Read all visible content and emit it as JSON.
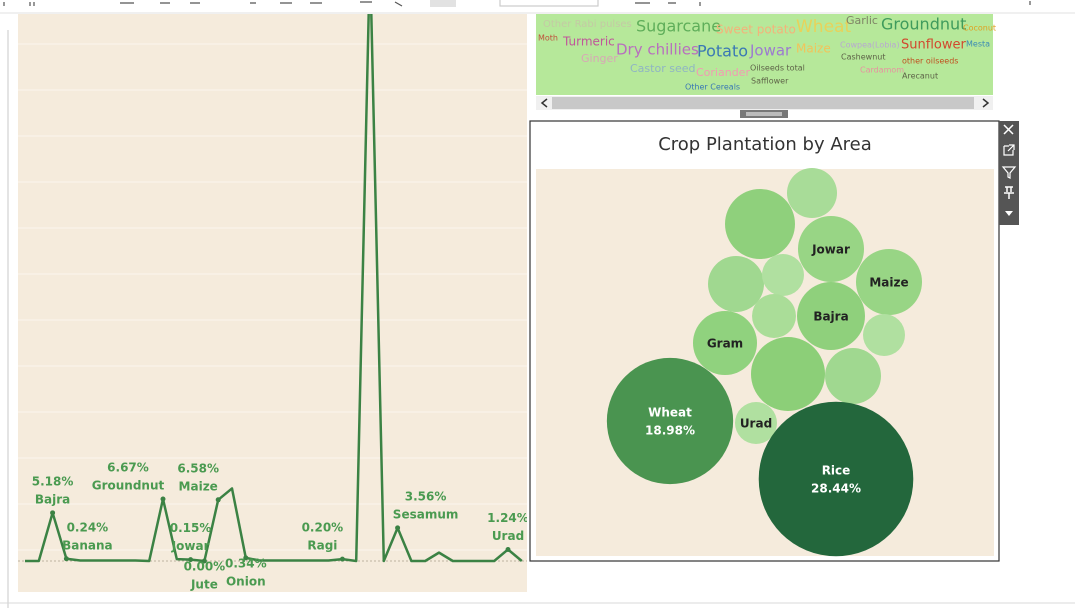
{
  "line_chart": {
    "color": "#3b8244",
    "points": [
      {
        "value": 0
      },
      {
        "value": 0
      },
      {
        "value": 5.18,
        "name": "Bajra",
        "value_label": "5.18%"
      },
      {
        "value": 0.24,
        "name": "Banana",
        "value_label": "0.24%"
      },
      {
        "value": 0.05
      },
      {
        "value": 0.05
      },
      {
        "value": 0.05
      },
      {
        "value": 0.05
      },
      {
        "value": 0.05
      },
      {
        "value": 0
      },
      {
        "value": 6.67,
        "name": "Groundnut",
        "value_label": "6.67%"
      },
      {
        "value": 0.2
      },
      {
        "value": 0.15,
        "name": "Jowar",
        "value_label": "0.15%"
      },
      {
        "value": 0.0,
        "name": "Jute",
        "value_label": "0.00%"
      },
      {
        "value": 6.58,
        "name": "Maize",
        "value_label": "6.58%"
      },
      {
        "value": 7.8
      },
      {
        "value": 0.34,
        "name": "Onion",
        "value_label": "0.34%"
      },
      {
        "value": 0.05
      },
      {
        "value": 0.05
      },
      {
        "value": 0.05
      },
      {
        "value": 0.05
      },
      {
        "value": 0.05
      },
      {
        "value": 0.05
      },
      {
        "value": 0.2,
        "name": "Ragi",
        "value_label": "0.20%"
      },
      {
        "value": 0
      },
      {
        "value": 65
      },
      {
        "value": 0
      },
      {
        "value": 3.56,
        "name": "Sesamum",
        "value_label": "3.56%"
      },
      {
        "value": 0
      },
      {
        "value": 0
      },
      {
        "value": 0.9
      },
      {
        "value": 0
      },
      {
        "value": 0
      },
      {
        "value": 0
      },
      {
        "value": 0
      },
      {
        "value": 1.24,
        "name": "Urad",
        "value_label": "1.24%"
      },
      {
        "value": 0
      }
    ]
  },
  "word_cloud": {
    "words": [
      {
        "text": "Other Rabi pulses",
        "color": "#c4c9a4"
      },
      {
        "text": "Sugarcane",
        "color": "#5fae5a"
      },
      {
        "text": "Sweet potato",
        "color": "#f4b27a"
      },
      {
        "text": "Wheat",
        "color": "#e8d25a"
      },
      {
        "text": "Garlic",
        "color": "#7e8466"
      },
      {
        "text": "Groundnut",
        "color": "#3f9b5c"
      },
      {
        "text": "Coconut",
        "color": "#e0a020"
      },
      {
        "text": "Moth",
        "color": "#c0503a"
      },
      {
        "text": "Turmeric",
        "color": "#c0569a"
      },
      {
        "text": "Ginger",
        "color": "#d8a7b5"
      },
      {
        "text": "Dry chillies",
        "color": "#b86fbe"
      },
      {
        "text": "Castor seed",
        "color": "#8fb4c4"
      },
      {
        "text": "Potato",
        "color": "#3a78b4"
      },
      {
        "text": "Coriander",
        "color": "#f29ab2"
      },
      {
        "text": "Jowar",
        "color": "#9c7ad0"
      },
      {
        "text": "Oilseeds total",
        "color": "#5e6448"
      },
      {
        "text": "Safflower",
        "color": "#5e6448"
      },
      {
        "text": "Other Cereals",
        "color": "#3a78b4"
      },
      {
        "text": "Maize",
        "color": "#f2c35a"
      },
      {
        "text": "Cowpea(Lobia)",
        "color": "#b8a8d0"
      },
      {
        "text": "Cashewnut",
        "color": "#5e6448"
      },
      {
        "text": "Cardamom",
        "color": "#e891a0"
      },
      {
        "text": "Sunflower",
        "color": "#d2482e"
      },
      {
        "text": "other oilseeds",
        "color": "#c05020"
      },
      {
        "text": "Arecanut",
        "color": "#5e6448"
      },
      {
        "text": "Mesta",
        "color": "#3a8ab4"
      }
    ]
  },
  "bubble_chart": {
    "title": "Crop Plantation by Area",
    "bubbles": [
      {
        "value": 2.98,
        "color": "#a8dc98"
      },
      {
        "value": 5.83,
        "color": "#8fd07c"
      },
      {
        "value": 5.19,
        "color": "#98d585",
        "name": "Jowar"
      },
      {
        "value": 5.19,
        "color": "#98d585",
        "name": "Maize"
      },
      {
        "value": 3.73,
        "color": "#a0d890"
      },
      {
        "value": 2.1,
        "color": "#b0e0a0"
      },
      {
        "value": 2.3,
        "color": "#aadd98"
      },
      {
        "value": 5.5,
        "color": "#8fd07c",
        "name": "Bajra"
      },
      {
        "value": 2.1,
        "color": "#b0e0a0"
      },
      {
        "value": 4.88,
        "color": "#90d27e",
        "name": "Gram"
      },
      {
        "value": 6.52,
        "color": "#8ccf78"
      },
      {
        "value": 3.73,
        "color": "#a0d890"
      },
      {
        "value": 18.98,
        "color": "#4a9450",
        "name": "Wheat",
        "value_label": "18.98%"
      },
      {
        "value": 2.1,
        "color": "#b0e0a0",
        "name": "Urad"
      },
      {
        "value": 28.44,
        "color": "#23673c",
        "name": "Rice",
        "value_label": "28.44%"
      }
    ]
  }
}
